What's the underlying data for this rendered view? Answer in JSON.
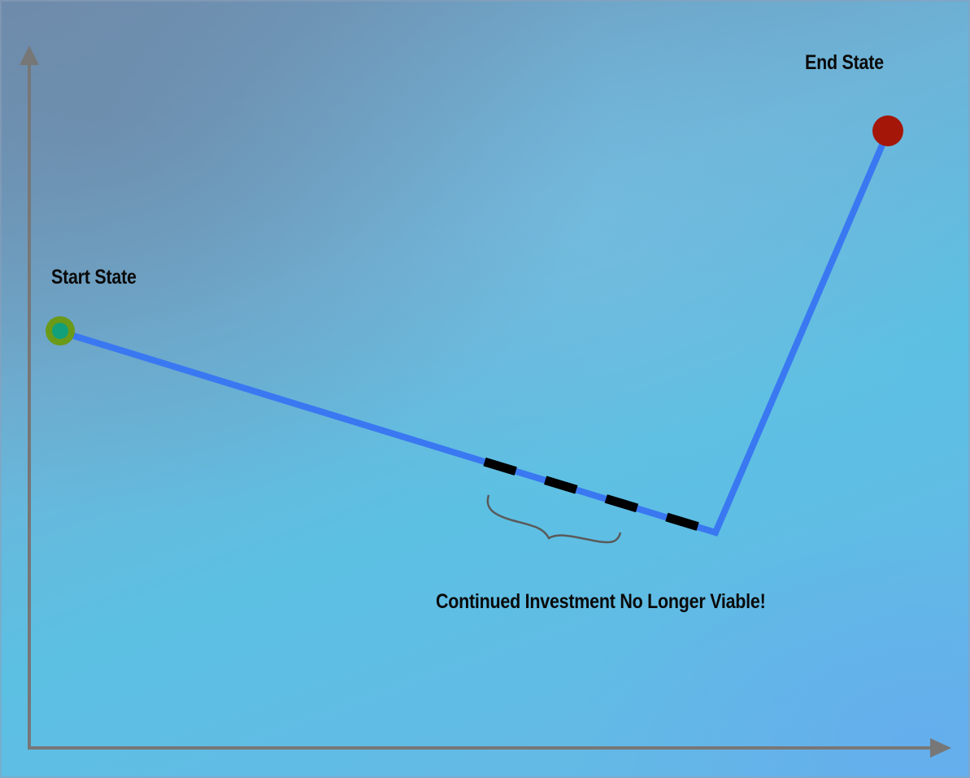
{
  "labels": {
    "start": "Start State",
    "end": "End State",
    "annotation": "Continued Investment No Longer Viable!"
  },
  "colors": {
    "path": "#3a78f2",
    "axes": "#777777",
    "start_outer": "#6a9a18",
    "start_inner": "#12a07a",
    "end_point": "#a41608",
    "dash": "#000000",
    "brace": "#5a5a5a"
  }
}
